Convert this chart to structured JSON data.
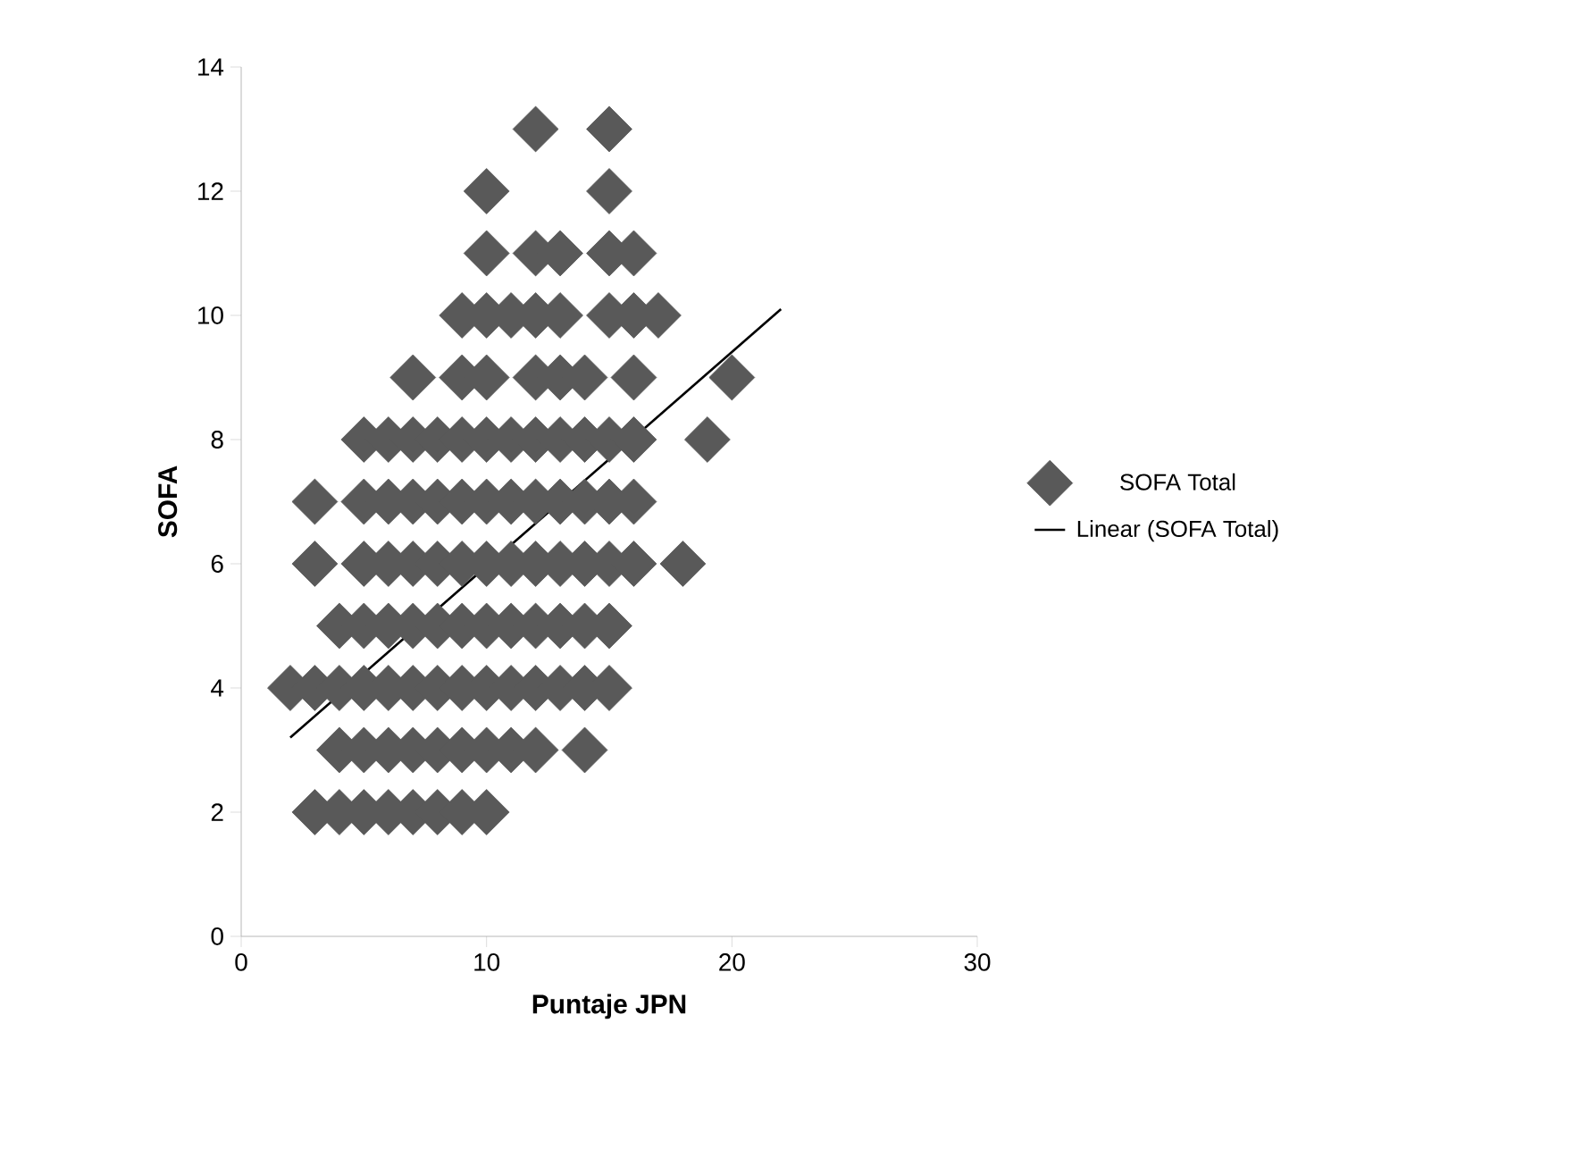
{
  "chart_data": {
    "type": "scatter",
    "xlabel": "Puntaje JPN",
    "ylabel": "SOFA",
    "xlim": [
      0,
      30
    ],
    "ylim": [
      0,
      14
    ],
    "xticks": [
      0,
      10,
      20,
      30
    ],
    "yticks": [
      0,
      2,
      4,
      6,
      8,
      10,
      12,
      14
    ],
    "grid": false,
    "legend": "right",
    "series": [
      {
        "name": "SOFA Total",
        "marker": "diamond",
        "color": "#595959",
        "x": [
          3,
          4,
          5,
          6,
          7,
          8,
          9,
          10,
          4,
          5,
          6,
          7,
          8,
          9,
          10,
          11,
          12,
          14,
          2,
          3,
          4,
          5,
          6,
          7,
          8,
          9,
          10,
          11,
          12,
          13,
          14,
          15,
          4,
          5,
          6,
          7,
          8,
          9,
          10,
          11,
          12,
          13,
          14,
          15,
          3,
          5,
          6,
          7,
          8,
          9,
          10,
          11,
          12,
          13,
          14,
          15,
          16,
          18,
          3,
          5,
          6,
          7,
          8,
          9,
          10,
          11,
          12,
          13,
          14,
          15,
          16,
          5,
          6,
          7,
          8,
          9,
          10,
          11,
          12,
          13,
          14,
          15,
          16,
          19,
          7,
          9,
          10,
          12,
          13,
          14,
          16,
          20,
          9,
          10,
          11,
          12,
          13,
          15,
          16,
          17,
          10,
          12,
          13,
          15,
          16,
          10,
          15,
          12,
          15
        ],
        "values": [
          2,
          2,
          2,
          2,
          2,
          2,
          2,
          2,
          3,
          3,
          3,
          3,
          3,
          3,
          3,
          3,
          3,
          3,
          4,
          4,
          4,
          4,
          4,
          4,
          4,
          4,
          4,
          4,
          4,
          4,
          4,
          4,
          5,
          5,
          5,
          5,
          5,
          5,
          5,
          5,
          5,
          5,
          5,
          5,
          6,
          6,
          6,
          6,
          6,
          6,
          6,
          6,
          6,
          6,
          6,
          6,
          6,
          6,
          7,
          7,
          7,
          7,
          7,
          7,
          7,
          7,
          7,
          7,
          7,
          7,
          7,
          8,
          8,
          8,
          8,
          8,
          8,
          8,
          8,
          8,
          8,
          8,
          8,
          8,
          9,
          9,
          9,
          9,
          9,
          9,
          9,
          9,
          10,
          10,
          10,
          10,
          10,
          10,
          10,
          10,
          11,
          11,
          11,
          11,
          11,
          12,
          12,
          13,
          13
        ]
      },
      {
        "name": "Linear (SOFA Total)",
        "type": "line",
        "color": "#000000",
        "x": [
          2,
          22
        ],
        "values": [
          3.2,
          10.1
        ]
      }
    ]
  }
}
